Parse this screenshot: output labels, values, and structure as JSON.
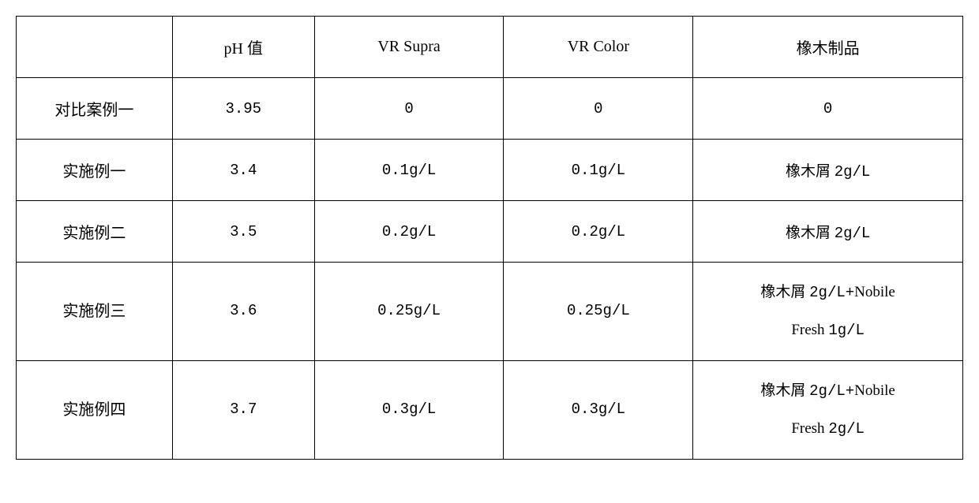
{
  "table": {
    "columns": [
      {
        "label": "",
        "class": "col-0"
      },
      {
        "label": "pH 值",
        "class": "col-1"
      },
      {
        "label": "VR Supra",
        "class": "col-2"
      },
      {
        "label": "VR Color",
        "class": "col-3"
      },
      {
        "label": "橡木制品",
        "class": "col-4"
      }
    ],
    "rows": [
      {
        "label": "对比案例一",
        "ph": "3.95",
        "supra": "0",
        "color": "0",
        "oak": "0",
        "row_class": "data-row"
      },
      {
        "label": "实施例一",
        "ph": "3.4",
        "supra": "0.1g/L",
        "color": "0.1g/L",
        "oak": "橡木屑 2g/L",
        "row_class": "data-row"
      },
      {
        "label": "实施例二",
        "ph": "3.5",
        "supra": "0.2g/L",
        "color": "0.2g/L",
        "oak": "橡木屑 2g/L",
        "row_class": "data-row"
      },
      {
        "label": "实施例三",
        "ph": "3.6",
        "supra": "0.25g/L",
        "color": "0.25g/L",
        "oak_line1_cjk": "橡木屑 ",
        "oak_line1_mono": "2g/L+",
        "oak_line1_roman": "Nobile",
        "oak_line2_roman": "Fresh ",
        "oak_line2_mono": "1g/L",
        "row_class": "tall-row"
      },
      {
        "label": "实施例四",
        "ph": "3.7",
        "supra": "0.3g/L",
        "color": "0.3g/L",
        "oak_line1_cjk": "橡木屑 ",
        "oak_line1_mono": "2g/L+",
        "oak_line1_roman": "Nobile",
        "oak_line2_roman": "Fresh ",
        "oak_line2_mono": "2g/L",
        "row_class": "tall-row"
      }
    ],
    "styling": {
      "border_color": "#000000",
      "background_color": "#ffffff",
      "font_size_header": 20,
      "font_size_data": 19,
      "header_row_height": 78,
      "data_row_height": 78,
      "tall_row_height": 125
    }
  }
}
